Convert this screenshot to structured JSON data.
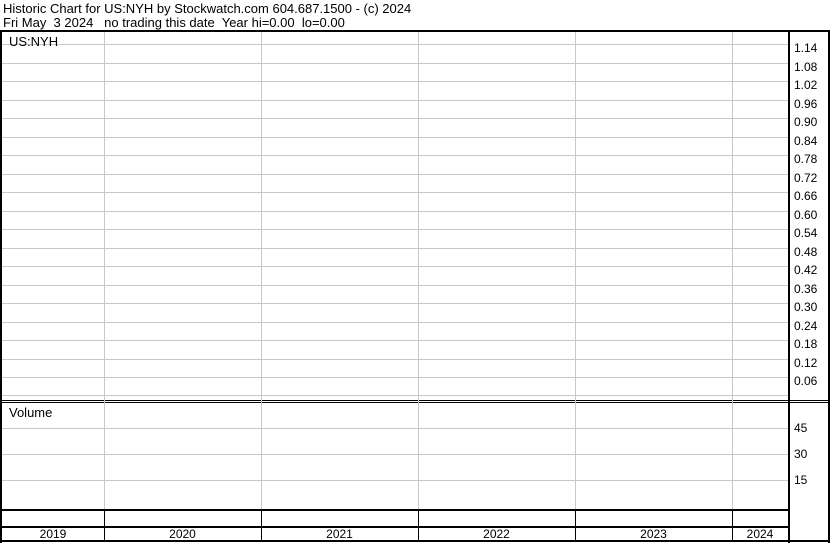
{
  "header": {
    "line1": "Historic Chart for US:NYH by Stockwatch.com 604.687.1500 - (c) 2024",
    "line2": "Fri May  3 2024   no trading this date  Year hi=0.00  lo=0.00"
  },
  "chart_data": [
    {
      "type": "line",
      "title": "US:NYH",
      "x_categories": [
        "2019",
        "2020",
        "2021",
        "2022",
        "2023",
        "2024"
      ],
      "y_ticks": [
        "1.14",
        "1.08",
        "1.02",
        "0.96",
        "0.90",
        "0.84",
        "0.78",
        "0.72",
        "0.66",
        "0.60",
        "0.54",
        "0.48",
        "0.42",
        "0.36",
        "0.30",
        "0.24",
        "0.18",
        "0.12",
        "0.06"
      ],
      "ylim": [
        0,
        1.2
      ],
      "series": [],
      "grid": true
    },
    {
      "type": "bar",
      "title": "Volume",
      "x_categories": [
        "2019",
        "2020",
        "2021",
        "2022",
        "2023",
        "2024"
      ],
      "y_ticks": [
        "45",
        "30",
        "15"
      ],
      "series": [],
      "grid": true
    }
  ],
  "colors": {
    "grid": "#c8c8c8",
    "axis": "#000000"
  }
}
